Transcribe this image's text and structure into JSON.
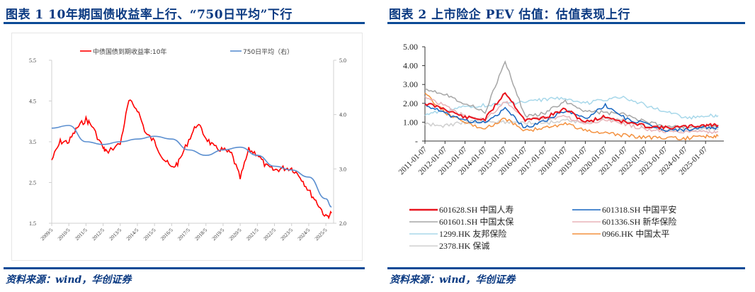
{
  "figures": [
    {
      "title": "图表 1   10年期国债收益率上行、“750日平均”下行",
      "source": "资料来源：wind，华创证券"
    },
    {
      "title": "图表 2   上市险企 PEV 估值：估值表现上行",
      "source": "资料来源：wind，华创证券"
    }
  ],
  "chart_data": [
    {
      "type": "line",
      "title": "10年期国债收益率上行、“750日平均”下行",
      "xlabel": "",
      "ylabel": "",
      "x_ticks": [
        "2009/5",
        "2010/5",
        "2011/5",
        "2012/5",
        "2013/5",
        "2014/5",
        "2015/5",
        "2016/5",
        "2017/5",
        "2018/5",
        "2019/5",
        "2020/5",
        "2021/5",
        "2022/5",
        "2023/5",
        "2024/5",
        "2025/5"
      ],
      "y_left": {
        "ticks": [
          "5.5",
          "4.5",
          "3.5",
          "2.5",
          "1.5"
        ],
        "ylim": [
          1.5,
          5.5
        ]
      },
      "y_right": {
        "ticks": [
          "5.0",
          "4.0",
          "3.0",
          "2.0"
        ],
        "ylim": [
          2.0,
          5.0
        ]
      },
      "grid": false,
      "legend_position": "top",
      "series": [
        {
          "name": "中债国债到期收益率:10年",
          "axis": "left",
          "color": "#ff0000",
          "x": [
            "2009/5",
            "2009/11",
            "2010/5",
            "2010/11",
            "2011/5",
            "2011/9",
            "2012/5",
            "2012/7",
            "2013/5",
            "2013/11",
            "2014/5",
            "2014/11",
            "2015/5",
            "2015/11",
            "2016/5",
            "2016/10",
            "2017/5",
            "2017/11",
            "2018/5",
            "2018/11",
            "2019/5",
            "2019/11",
            "2020/5",
            "2020/11",
            "2021/5",
            "2021/11",
            "2022/5",
            "2022/11",
            "2023/5",
            "2023/11",
            "2024/5",
            "2024/11",
            "2025/5",
            "2025/9"
          ],
          "values": [
            3.05,
            3.5,
            3.5,
            3.85,
            4.05,
            3.9,
            3.35,
            3.25,
            3.45,
            4.5,
            4.3,
            3.7,
            3.5,
            3.1,
            2.85,
            3.0,
            3.55,
            3.95,
            3.6,
            3.35,
            3.3,
            3.2,
            2.6,
            3.3,
            3.2,
            2.9,
            2.8,
            2.85,
            2.85,
            2.65,
            2.3,
            2.0,
            1.65,
            1.75
          ]
        },
        {
          "name": "750日平均（右）",
          "axis": "right",
          "color": "#5b8fd0",
          "x": [
            "2009/5",
            "2010/5",
            "2011/5",
            "2012/5",
            "2013/5",
            "2014/5",
            "2015/5",
            "2016/5",
            "2017/5",
            "2018/5",
            "2019/5",
            "2020/5",
            "2021/5",
            "2022/5",
            "2023/5",
            "2024/5",
            "2025/5",
            "2025/9"
          ],
          "values": [
            3.75,
            3.8,
            3.5,
            3.45,
            3.5,
            3.55,
            3.6,
            3.55,
            3.35,
            3.25,
            3.35,
            3.4,
            3.25,
            3.05,
            2.98,
            2.85,
            2.45,
            2.3
          ]
        }
      ]
    },
    {
      "type": "line",
      "title": "上市险企 PEV 估值：估值表现上行",
      "xlabel": "",
      "ylabel": "",
      "x_ticks": [
        "2011-01-07",
        "2012-01-07",
        "2013-01-07",
        "2014-01-07",
        "2015-01-07",
        "2016-01-07",
        "2017-01-07",
        "2018-01-07",
        "2019-01-07",
        "2020-01-07",
        "2021-01-07",
        "2022-01-07",
        "2023-01-07",
        "2024-01-07",
        "2025-01-07"
      ],
      "y_ticks": [
        "5.00",
        "4.00",
        "3.00",
        "2.00",
        "1.00",
        "-"
      ],
      "ylim": [
        0,
        5
      ],
      "grid": false,
      "legend_position": "bottom",
      "series": [
        {
          "name": "601628.SH 中国人寿",
          "color": "#e8141e",
          "values": [
            2.0,
            1.7,
            1.25,
            1.15,
            2.6,
            1.1,
            1.25,
            1.7,
            1.0,
            1.3,
            1.0,
            0.8,
            0.7,
            0.75,
            0.85
          ]
        },
        {
          "name": "601318.SH 中国平安",
          "color": "#1565c0",
          "values": [
            1.95,
            1.45,
            1.1,
            0.95,
            1.7,
            0.7,
            1.1,
            1.6,
            1.2,
            1.9,
            1.2,
            0.9,
            0.6,
            0.6,
            0.7
          ]
        },
        {
          "name": "601601.SH 中国太保",
          "color": "#a6a6a6",
          "values": [
            2.8,
            2.5,
            2.0,
            1.55,
            4.2,
            1.3,
            1.5,
            2.1,
            1.6,
            1.5,
            1.4,
            1.0,
            0.8,
            0.75,
            0.75
          ]
        },
        {
          "name": "601336.SH 新华保险",
          "color": "#e8b4b8",
          "values": [
            2.3,
            1.9,
            1.3,
            1.1,
            2.1,
            1.2,
            1.2,
            1.3,
            0.9,
            1.1,
            0.9,
            0.6,
            0.5,
            0.45,
            0.5
          ]
        },
        {
          "name": "1299.HK 友邦保险",
          "color": "#a8d8ea",
          "values": [
            1.4,
            1.6,
            1.8,
            1.9,
            2.0,
            2.05,
            2.2,
            2.3,
            2.0,
            2.2,
            2.3,
            1.9,
            1.6,
            1.2,
            1.35
          ]
        },
        {
          "name": "0966.HK 中国太平",
          "color": "#f4913f",
          "values": [
            2.5,
            1.5,
            1.0,
            0.65,
            1.2,
            0.55,
            0.7,
            0.9,
            0.6,
            0.4,
            0.3,
            0.2,
            0.15,
            0.15,
            0.25
          ]
        },
        {
          "name": "2378.HK 保诚",
          "color": "#cfcfcf",
          "values": [
            0.9,
            0.8,
            1.0,
            1.05,
            1.0,
            1.0,
            0.95,
            1.1,
            1.0,
            1.2,
            1.1,
            0.8,
            0.6,
            0.6,
            0.6
          ]
        }
      ]
    }
  ]
}
